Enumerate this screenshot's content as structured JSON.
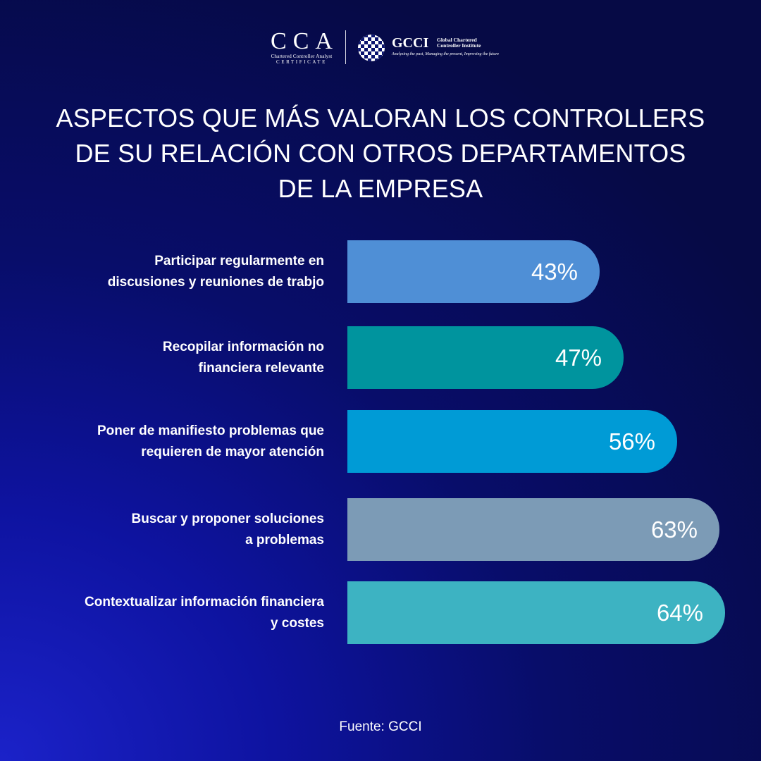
{
  "header": {
    "cca_logo": {
      "letters": "CCA",
      "sub_line1": "Chartered Controller Analyst",
      "sub_line2": "CERTIFICATE"
    },
    "gcci_logo": {
      "abbr": "GCCI",
      "full_line1": "Global Chartered",
      "full_line2": "Controller Institute",
      "tagline": "Analyzing the past, Managing the present, Improving the future"
    }
  },
  "title": {
    "line1": "ASPECTOS QUE MÁS VALORAN LOS CONTROLLERS",
    "line2": "DE SU RELACIÓN CON OTROS DEPARTAMENTOS",
    "line3": "DE LA EMPRESA"
  },
  "chart_data": {
    "type": "bar",
    "orientation": "horizontal",
    "categories": [
      [
        "Participar regularmente en",
        "discusiones y reuniones  de trabjo"
      ],
      [
        "Recopilar información no",
        "financiera relevante"
      ],
      [
        "Poner de manifiesto problemas que",
        "requieren de mayor atención"
      ],
      [
        "Buscar y proponer soluciones",
        "a problemas"
      ],
      [
        "Contextualizar información financiera",
        "y costes"
      ]
    ],
    "values": [
      43,
      47,
      56,
      63,
      64
    ],
    "value_labels": [
      "43%",
      "47%",
      "56%",
      "63%",
      "64%"
    ],
    "colors": [
      "#4f8fd6",
      "#00949e",
      "#009bd6",
      "#7c9bb6",
      "#3db3c2"
    ],
    "unit": "%",
    "title": "ASPECTOS QUE MÁS VALORAN LOS CONTROLLERS DE SU RELACIÓN CON OTROS DEPARTAMENTOS DE LA EMPRESA",
    "xlabel": "",
    "ylabel": "",
    "grid": false,
    "legend": "none"
  },
  "footer": {
    "source": "Fuente: GCCI"
  }
}
